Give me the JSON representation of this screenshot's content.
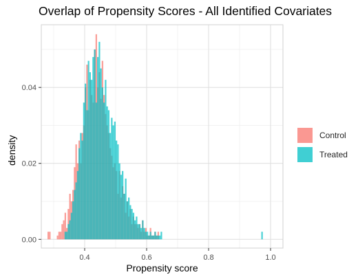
{
  "chart_data": {
    "type": "histogram",
    "title": "Overlap of Propensity Scores - All Identified Covariates",
    "xlabel": "Propensity score",
    "ylabel": "density",
    "xlim": [
      0.26,
      1.04
    ],
    "ylim": [
      -0.0023,
      0.0565
    ],
    "x_ticks": [
      0.4,
      0.6,
      0.8,
      1.0
    ],
    "x_tick_labels": [
      "0.4",
      "0.6",
      "0.8",
      "1.0"
    ],
    "y_ticks": [
      0.0,
      0.02,
      0.04
    ],
    "y_tick_labels": [
      "0.00",
      "0.02",
      "0.04"
    ],
    "grid": true,
    "legend_position": "right",
    "bin_start": 0.28,
    "bin_width": 0.005,
    "series": [
      {
        "name": "Control",
        "color": "#F8766D",
        "values": [
          0.002,
          0.002,
          0.0,
          0.0,
          0.0,
          0.0,
          0.001,
          0.002,
          0.002,
          0.004,
          0.005,
          0.007,
          0.003,
          0.008,
          0.012,
          0.01,
          0.013,
          0.019,
          0.025,
          0.02,
          0.026,
          0.02,
          0.028,
          0.03,
          0.04,
          0.046,
          0.034,
          0.042,
          0.038,
          0.036,
          0.05,
          0.054,
          0.04,
          0.044,
          0.037,
          0.047,
          0.038,
          0.033,
          0.03,
          0.028,
          0.024,
          0.022,
          0.019,
          0.02,
          0.018,
          0.012,
          0.018,
          0.011,
          0.014,
          0.012,
          0.007,
          0.01,
          0.006,
          0.008,
          0.004,
          0.006,
          0.004,
          0.004,
          0.003,
          0.004,
          0.002,
          0.005,
          0.002,
          0.003,
          0.001,
          0.001,
          0.003,
          0.001,
          0.001,
          0.002,
          0.001,
          0.002,
          0.0,
          0.0,
          0.0,
          0.0,
          0.0,
          0.0,
          0.0,
          0.0,
          0.0,
          0.0,
          0.0,
          0.0,
          0.0,
          0.0,
          0.0,
          0.0,
          0.0,
          0.0,
          0.0,
          0.0,
          0.0,
          0.0,
          0.0,
          0.0,
          0.0,
          0.0,
          0.0,
          0.0,
          0.0,
          0.0,
          0.0,
          0.0,
          0.0,
          0.0,
          0.0,
          0.0,
          0.0,
          0.0,
          0.0,
          0.0,
          0.0,
          0.0,
          0.0,
          0.0,
          0.0,
          0.0,
          0.0,
          0.0,
          0.0,
          0.0,
          0.0,
          0.0,
          0.0,
          0.0,
          0.0,
          0.0,
          0.0,
          0.0,
          0.0,
          0.0,
          0.0,
          0.0,
          0.0,
          0.0,
          0.0,
          0.0,
          0.0,
          0.0,
          0.0,
          0.0,
          0.0,
          0.0,
          0.0
        ]
      },
      {
        "name": "Treated",
        "color": "#00BFC4",
        "values": [
          0.0,
          0.0,
          0.0,
          0.0,
          0.0,
          0.0,
          0.0,
          0.0,
          0.0,
          0.0,
          0.0,
          0.002,
          0.002,
          0.004,
          0.005,
          0.007,
          0.01,
          0.013,
          0.015,
          0.018,
          0.024,
          0.028,
          0.026,
          0.036,
          0.041,
          0.034,
          0.047,
          0.044,
          0.042,
          0.048,
          0.05,
          0.036,
          0.048,
          0.052,
          0.045,
          0.04,
          0.036,
          0.042,
          0.035,
          0.034,
          0.028,
          0.032,
          0.03,
          0.031,
          0.026,
          0.025,
          0.02,
          0.017,
          0.018,
          0.012,
          0.016,
          0.01,
          0.011,
          0.009,
          0.008,
          0.007,
          0.005,
          0.006,
          0.004,
          0.004,
          0.003,
          0.005,
          0.003,
          0.002,
          0.002,
          0.001,
          0.002,
          0.001,
          0.001,
          0.002,
          0.001,
          0.001,
          0.001,
          0.002,
          0.0,
          0.0,
          0.0,
          0.0,
          0.0,
          0.0,
          0.0,
          0.0,
          0.0,
          0.0,
          0.0,
          0.0,
          0.0,
          0.0,
          0.0,
          0.0,
          0.0,
          0.0,
          0.0,
          0.0,
          0.0,
          0.0,
          0.0,
          0.0,
          0.0,
          0.0,
          0.0,
          0.0,
          0.0,
          0.0,
          0.0,
          0.0,
          0.0,
          0.0,
          0.0,
          0.0,
          0.0,
          0.0,
          0.0,
          0.0,
          0.0,
          0.0,
          0.0,
          0.0,
          0.0,
          0.0,
          0.0,
          0.0,
          0.0,
          0.0,
          0.0,
          0.0,
          0.0,
          0.0,
          0.0,
          0.0,
          0.0,
          0.0,
          0.0,
          0.0,
          0.0,
          0.0,
          0.0,
          0.0,
          0.002
        ]
      }
    ]
  }
}
